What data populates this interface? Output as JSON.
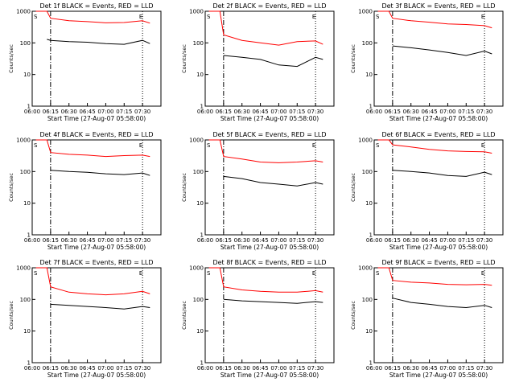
{
  "chart_data": [
    {
      "type": "line",
      "title": "Det 1f BLACK = Events, RED = LLD",
      "xlabel": "Start Time (27-Aug-07 05:58:00)",
      "ylabel": "Counts/sec",
      "xticks": [
        "06:00",
        "06:15",
        "06:30",
        "06:45",
        "07:00",
        "07:15",
        "07:30"
      ],
      "yticks": [
        "1",
        "10",
        "100",
        "1000"
      ],
      "markers": [
        "S",
        "E"
      ],
      "series": [
        {
          "color": "#ff0000",
          "x": [
            6.05,
            6.2,
            6.25,
            6.5,
            6.75,
            7.0,
            7.25,
            7.5,
            7.6
          ],
          "y": [
            1000,
            1000,
            600,
            500,
            470,
            430,
            440,
            500,
            420
          ]
        },
        {
          "color": "#000000",
          "x": [
            6.2,
            6.25,
            6.5,
            6.75,
            7.0,
            7.25,
            7.5,
            7.6
          ],
          "y": [
            130,
            120,
            110,
            105,
            95,
            90,
            120,
            95
          ]
        }
      ]
    },
    {
      "type": "line",
      "title": "Det 2f BLACK = Events, RED = LLD",
      "xlabel": "Start Time (27-Aug-07 05:58:00)",
      "ylabel": "Counts/sec",
      "xticks": [
        "06:00",
        "06:15",
        "06:30",
        "06:45",
        "07:00",
        "07:15",
        "07:30"
      ],
      "yticks": [
        "1",
        "10",
        "100",
        "1000"
      ],
      "markers": [
        "S",
        "E"
      ],
      "series": [
        {
          "color": "#ff0000",
          "x": [
            6.05,
            6.2,
            6.25,
            6.5,
            6.75,
            7.0,
            7.25,
            7.5,
            7.6
          ],
          "y": [
            1000,
            1000,
            180,
            120,
            100,
            85,
            110,
            115,
            90
          ]
        },
        {
          "color": "#000000",
          "x": [
            6.25,
            6.5,
            6.75,
            7.0,
            7.25,
            7.5,
            7.6
          ],
          "y": [
            40,
            35,
            30,
            20,
            18,
            35,
            30
          ]
        }
      ]
    },
    {
      "type": "line",
      "title": "Det 3f BLACK = Events, RED = LLD",
      "xlabel": "Start Time (27-Aug-07 05:58:00)",
      "ylabel": "Counts/sec",
      "xticks": [
        "06:00",
        "06:15",
        "06:30",
        "06:45",
        "07:00",
        "07:15",
        "07:30"
      ],
      "yticks": [
        "1",
        "10",
        "100",
        "1000"
      ],
      "markers": [
        "S",
        "E"
      ],
      "series": [
        {
          "color": "#ff0000",
          "x": [
            6.05,
            6.2,
            6.25,
            6.5,
            6.75,
            7.0,
            7.25,
            7.5,
            7.6
          ],
          "y": [
            1000,
            1000,
            600,
            500,
            450,
            400,
            380,
            350,
            300
          ]
        },
        {
          "color": "#000000",
          "x": [
            6.25,
            6.5,
            6.75,
            7.0,
            7.25,
            7.5,
            7.6
          ],
          "y": [
            80,
            70,
            60,
            50,
            40,
            55,
            45
          ]
        }
      ]
    },
    {
      "type": "line",
      "title": "Det 4f BLACK = Events, RED = LLD",
      "xlabel": "Start Time (27-Aug-07 05:58:00)",
      "ylabel": "Counts/sec",
      "xticks": [
        "06:00",
        "06:15",
        "06:30",
        "06:45",
        "07:00",
        "07:15",
        "07:30"
      ],
      "yticks": [
        "1",
        "10",
        "100",
        "1000"
      ],
      "markers": [
        "S",
        "E"
      ],
      "series": [
        {
          "color": "#ff0000",
          "x": [
            6.05,
            6.2,
            6.25,
            6.5,
            6.75,
            7.0,
            7.25,
            7.5,
            7.6
          ],
          "y": [
            1000,
            1000,
            400,
            350,
            330,
            300,
            320,
            330,
            300
          ]
        },
        {
          "color": "#000000",
          "x": [
            6.25,
            6.5,
            6.75,
            7.0,
            7.25,
            7.5,
            7.6
          ],
          "y": [
            110,
            100,
            95,
            85,
            80,
            90,
            75
          ]
        }
      ]
    },
    {
      "type": "line",
      "title": "Det 5f BLACK = Events, RED = LLD",
      "xlabel": "Start Time (27-Aug-07 05:58:00)",
      "ylabel": "Counts/sec",
      "xticks": [
        "06:00",
        "06:15",
        "06:30",
        "06:45",
        "07:00",
        "07:15",
        "07:30"
      ],
      "yticks": [
        "1",
        "10",
        "100",
        "1000"
      ],
      "markers": [
        "S",
        "E"
      ],
      "series": [
        {
          "color": "#ff0000",
          "x": [
            6.05,
            6.2,
            6.25,
            6.5,
            6.75,
            7.0,
            7.25,
            7.5,
            7.6
          ],
          "y": [
            1000,
            1000,
            300,
            250,
            200,
            190,
            200,
            220,
            200
          ]
        },
        {
          "color": "#000000",
          "x": [
            6.25,
            6.5,
            6.75,
            7.0,
            7.25,
            7.5,
            7.6
          ],
          "y": [
            70,
            60,
            45,
            40,
            35,
            45,
            40
          ]
        }
      ]
    },
    {
      "type": "line",
      "title": "Det 6f BLACK = Events, RED = LLD",
      "xlabel": "Start Time (27-Aug-07 05:58:00)",
      "ylabel": "Counts/sec",
      "xticks": [
        "06:00",
        "06:15",
        "06:30",
        "06:45",
        "07:00",
        "07:15",
        "07:30"
      ],
      "yticks": [
        "1",
        "10",
        "100",
        "1000"
      ],
      "markers": [
        "S",
        "E"
      ],
      "series": [
        {
          "color": "#ff0000",
          "x": [
            6.05,
            6.2,
            6.25,
            6.5,
            6.75,
            7.0,
            7.25,
            7.5,
            7.6
          ],
          "y": [
            1000,
            1000,
            700,
            600,
            500,
            450,
            430,
            420,
            380
          ]
        },
        {
          "color": "#000000",
          "x": [
            6.25,
            6.5,
            6.75,
            7.0,
            7.25,
            7.5,
            7.6
          ],
          "y": [
            110,
            100,
            90,
            75,
            70,
            95,
            80
          ]
        }
      ]
    },
    {
      "type": "line",
      "title": "Det 7f BLACK = Events, RED = LLD",
      "xlabel": "Start Time (27-Aug-07 05:58:00)",
      "ylabel": "Counts/sec",
      "xticks": [
        "06:00",
        "06:15",
        "06:30",
        "06:45",
        "07:00",
        "07:15",
        "07:30"
      ],
      "yticks": [
        "1",
        "10",
        "100",
        "1000"
      ],
      "markers": [
        "S",
        "E"
      ],
      "series": [
        {
          "color": "#ff0000",
          "x": [
            6.05,
            6.2,
            6.25,
            6.5,
            6.75,
            7.0,
            7.25,
            7.5,
            7.6
          ],
          "y": [
            1000,
            1000,
            250,
            170,
            150,
            140,
            150,
            180,
            150
          ]
        },
        {
          "color": "#000000",
          "x": [
            6.25,
            6.5,
            6.75,
            7.0,
            7.25,
            7.5,
            7.6
          ],
          "y": [
            70,
            65,
            60,
            55,
            50,
            60,
            55
          ]
        }
      ]
    },
    {
      "type": "line",
      "title": "Det 8f BLACK = Events, RED = LLD",
      "xlabel": "Start Time (27-Aug-07 05:58:00)",
      "ylabel": "Counts/sec",
      "xticks": [
        "06:00",
        "06:15",
        "06:30",
        "06:45",
        "07:00",
        "07:15",
        "07:30"
      ],
      "yticks": [
        "1",
        "10",
        "100",
        "1000"
      ],
      "markers": [
        "S",
        "E"
      ],
      "series": [
        {
          "color": "#ff0000",
          "x": [
            6.05,
            6.2,
            6.25,
            6.5,
            6.75,
            7.0,
            7.25,
            7.5,
            7.6
          ],
          "y": [
            1000,
            1000,
            250,
            200,
            180,
            170,
            170,
            190,
            170
          ]
        },
        {
          "color": "#000000",
          "x": [
            6.25,
            6.5,
            6.75,
            7.0,
            7.25,
            7.5,
            7.6
          ],
          "y": [
            100,
            90,
            85,
            80,
            75,
            85,
            80
          ]
        }
      ]
    },
    {
      "type": "line",
      "title": "Det 9f BLACK = Events, RED = LLD",
      "xlabel": "Start Time (27-Aug-07 05:58:00)",
      "ylabel": "Counts/sec",
      "xticks": [
        "06:00",
        "06:15",
        "06:30",
        "06:45",
        "07:00",
        "07:15",
        "07:30"
      ],
      "yticks": [
        "1",
        "10",
        "100",
        "1000"
      ],
      "markers": [
        "S",
        "E"
      ],
      "series": [
        {
          "color": "#ff0000",
          "x": [
            6.05,
            6.2,
            6.25,
            6.5,
            6.75,
            7.0,
            7.25,
            7.5,
            7.6
          ],
          "y": [
            1000,
            1000,
            400,
            350,
            330,
            300,
            290,
            300,
            280
          ]
        },
        {
          "color": "#000000",
          "x": [
            6.25,
            6.5,
            6.75,
            7.0,
            7.25,
            7.5,
            7.6
          ],
          "y": [
            110,
            80,
            70,
            60,
            55,
            65,
            55
          ]
        }
      ]
    }
  ]
}
